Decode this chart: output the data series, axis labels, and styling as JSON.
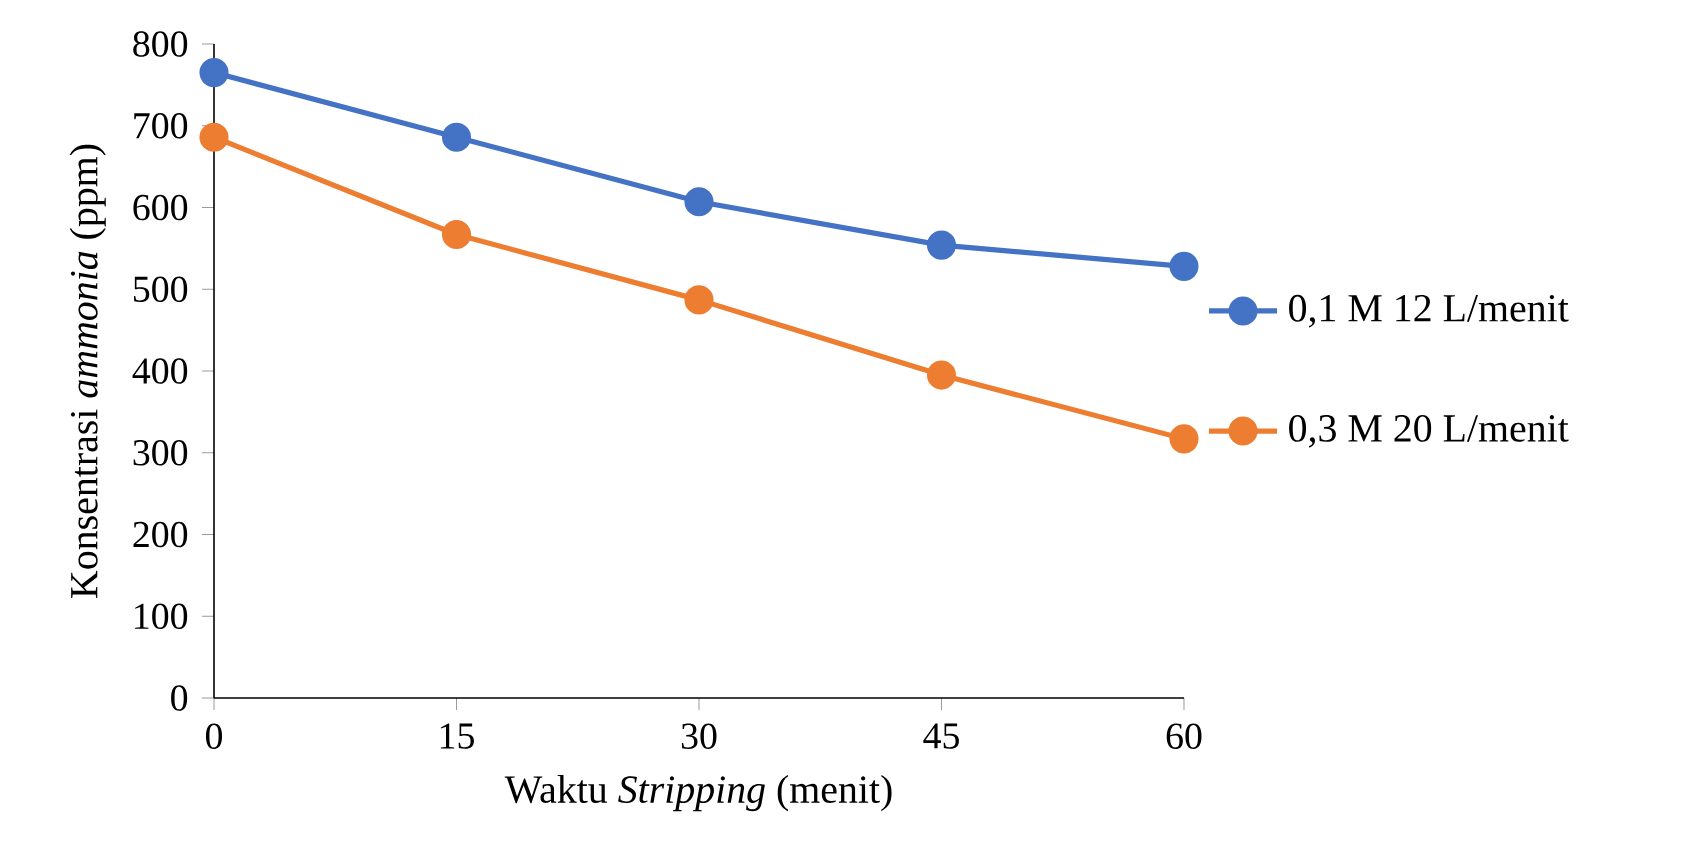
{
  "chart_data": {
    "type": "line",
    "xlabel": "Waktu *Stripping* (menit)",
    "ylabel": "Konsentrasi  *ammonia* (ppm)",
    "x": [
      0,
      15,
      30,
      45,
      60
    ],
    "xlim": [
      0,
      60
    ],
    "xticks": [
      0,
      15,
      30,
      45,
      60
    ],
    "ylim": [
      0,
      800
    ],
    "yticks": [
      0,
      100,
      200,
      300,
      400,
      500,
      600,
      700,
      800
    ],
    "series": [
      {
        "name": "0,1 M 12 L/menit",
        "color": "#4472c4",
        "values": [
          765,
          686,
          607,
          554,
          528
        ]
      },
      {
        "name": "0,3 M 20 L/menit",
        "color": "#ed7d31",
        "values": [
          686,
          567,
          487,
          395,
          317
        ]
      }
    ],
    "legend": "right",
    "marker": "circle",
    "line_style": "solid",
    "grid": false
  }
}
